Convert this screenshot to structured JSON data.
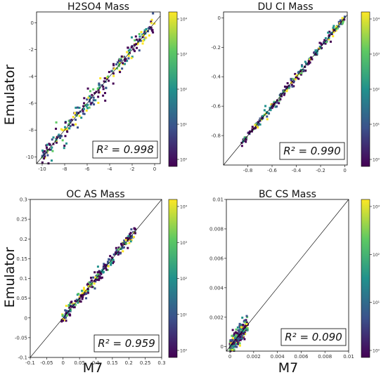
{
  "figure": {
    "ylabel": "Emulator",
    "xlabel": "M7",
    "colormap": [
      "#440154",
      "#3b528b",
      "#21918c",
      "#5ec962",
      "#fde725"
    ]
  },
  "chart_data": [
    {
      "type": "heatmap",
      "title": "H2SO4 Mass",
      "xlim": [
        -10.5,
        0.5
      ],
      "ylim": [
        -10.5,
        0.8
      ],
      "xticks": [
        -10,
        -8,
        -6,
        -4,
        -2,
        0
      ],
      "yticks": [
        0,
        -2,
        -4,
        -6,
        -8,
        -10
      ],
      "colorbar_ticks": [
        "10⁰",
        "10¹",
        "10²",
        "10³",
        "10⁴"
      ],
      "r2_label": "R² = 0.998",
      "band": {
        "from": -10,
        "to": 0,
        "spread": 0.6
      }
    },
    {
      "type": "heatmap",
      "title": "DU CI Mass",
      "xlim": [
        -1.0,
        0.02
      ],
      "ylim": [
        -1.0,
        0.04
      ],
      "xticks": [
        -0.8,
        -0.6,
        -0.4,
        -0.2,
        0.0
      ],
      "yticks": [
        0.0,
        -0.2,
        -0.4,
        -0.6,
        -0.8
      ],
      "colorbar_ticks": [
        "10⁰",
        "10¹",
        "10²",
        "10³",
        "10⁴"
      ],
      "r2_label": "R² = 0.990",
      "band": {
        "from": -0.85,
        "to": 0.0,
        "spread": 0.02
      }
    },
    {
      "type": "heatmap",
      "title": "OC AS Mass",
      "xlim": [
        -0.1,
        0.3
      ],
      "ylim": [
        -0.1,
        0.3
      ],
      "xticks": [
        -0.1,
        -0.05,
        0.0,
        0.05,
        0.1,
        0.15,
        0.2,
        0.25,
        0.3
      ],
      "yticks": [
        0.3,
        0.25,
        0.2,
        0.15,
        0.1,
        0.05,
        0.0,
        -0.05,
        -0.1
      ],
      "colorbar_ticks": [
        "10⁰",
        "10¹",
        "10²",
        "10³",
        "10⁴"
      ],
      "r2_label": "R² = 0.959",
      "band": {
        "from": -0.005,
        "to": 0.22,
        "spread": 0.012
      }
    },
    {
      "type": "heatmap",
      "title": "BC CS Mass",
      "xlim": [
        -0.0003,
        0.01
      ],
      "ylim": [
        -0.0003,
        0.01
      ],
      "xticks": [
        0.0,
        0.002,
        0.004,
        0.006,
        0.008,
        0.01
      ],
      "yticks": [
        0.01,
        0.008,
        0.006,
        0.004,
        0.002,
        0.0
      ],
      "colorbar_ticks": [
        "10⁰",
        "10¹",
        "10²",
        "10³"
      ],
      "r2_label": "R² = 0.090",
      "band": {
        "from": 0.0,
        "to": 0.0015,
        "spread": 0.0004
      }
    }
  ]
}
